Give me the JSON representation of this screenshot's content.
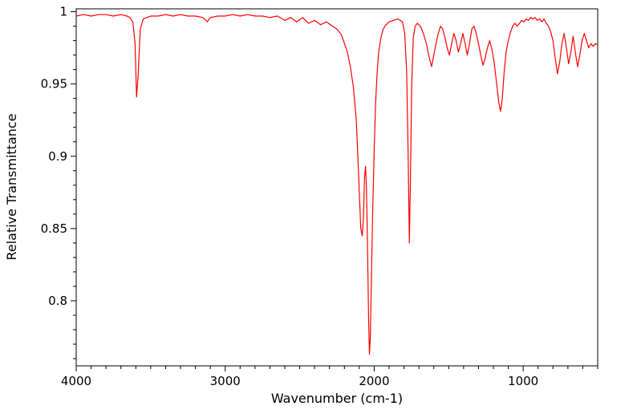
{
  "chart_data": {
    "type": "line",
    "title": "",
    "xlabel": "Wavenumber (cm-1)",
    "ylabel": "Relative Transmittance",
    "xlim": [
      4000,
      500
    ],
    "ylim": [
      0.755,
      1.002
    ],
    "x_axis_reversed": true,
    "grid": false,
    "legend": "none",
    "x_ticks": [
      4000,
      3000,
      2000,
      1000
    ],
    "x_tick_labels": [
      "4000",
      "3000",
      "2000",
      "1000"
    ],
    "x_minor_step": 100,
    "y_ticks": [
      1,
      0.95,
      0.9,
      0.85,
      0.8
    ],
    "y_tick_labels": [
      "1",
      "0.95",
      "0.9",
      "0.85",
      "0.8"
    ],
    "y_minor_step": 0.01,
    "line_color": "#ff0000",
    "frame_color": "#000000",
    "series": [
      {
        "name": "IR spectrum",
        "points": [
          [
            4000,
            0.997
          ],
          [
            3950,
            0.998
          ],
          [
            3900,
            0.997
          ],
          [
            3850,
            0.998
          ],
          [
            3800,
            0.998
          ],
          [
            3750,
            0.997
          ],
          [
            3700,
            0.998
          ],
          [
            3660,
            0.997
          ],
          [
            3640,
            0.996
          ],
          [
            3620,
            0.993
          ],
          [
            3605,
            0.978
          ],
          [
            3595,
            0.941
          ],
          [
            3585,
            0.955
          ],
          [
            3570,
            0.988
          ],
          [
            3550,
            0.995
          ],
          [
            3500,
            0.997
          ],
          [
            3450,
            0.997
          ],
          [
            3400,
            0.998
          ],
          [
            3350,
            0.997
          ],
          [
            3300,
            0.998
          ],
          [
            3250,
            0.997
          ],
          [
            3200,
            0.997
          ],
          [
            3150,
            0.996
          ],
          [
            3120,
            0.993
          ],
          [
            3100,
            0.996
          ],
          [
            3050,
            0.997
          ],
          [
            3000,
            0.997
          ],
          [
            2950,
            0.998
          ],
          [
            2900,
            0.997
          ],
          [
            2850,
            0.998
          ],
          [
            2800,
            0.997
          ],
          [
            2750,
            0.997
          ],
          [
            2700,
            0.996
          ],
          [
            2650,
            0.997
          ],
          [
            2600,
            0.994
          ],
          [
            2560,
            0.996
          ],
          [
            2520,
            0.993
          ],
          [
            2480,
            0.996
          ],
          [
            2440,
            0.992
          ],
          [
            2400,
            0.994
          ],
          [
            2360,
            0.991
          ],
          [
            2320,
            0.993
          ],
          [
            2280,
            0.99
          ],
          [
            2250,
            0.988
          ],
          [
            2220,
            0.984
          ],
          [
            2200,
            0.978
          ],
          [
            2180,
            0.972
          ],
          [
            2160,
            0.962
          ],
          [
            2140,
            0.948
          ],
          [
            2120,
            0.925
          ],
          [
            2105,
            0.888
          ],
          [
            2090,
            0.85
          ],
          [
            2080,
            0.845
          ],
          [
            2072,
            0.858
          ],
          [
            2065,
            0.885
          ],
          [
            2058,
            0.893
          ],
          [
            2052,
            0.878
          ],
          [
            2045,
            0.84
          ],
          [
            2038,
            0.79
          ],
          [
            2032,
            0.763
          ],
          [
            2026,
            0.775
          ],
          [
            2018,
            0.82
          ],
          [
            2010,
            0.862
          ],
          [
            2000,
            0.905
          ],
          [
            1990,
            0.938
          ],
          [
            1980,
            0.958
          ],
          [
            1970,
            0.972
          ],
          [
            1955,
            0.982
          ],
          [
            1940,
            0.988
          ],
          [
            1920,
            0.991
          ],
          [
            1900,
            0.993
          ],
          [
            1870,
            0.994
          ],
          [
            1840,
            0.995
          ],
          [
            1810,
            0.993
          ],
          [
            1795,
            0.985
          ],
          [
            1782,
            0.958
          ],
          [
            1772,
            0.9
          ],
          [
            1764,
            0.84
          ],
          [
            1756,
            0.89
          ],
          [
            1748,
            0.95
          ],
          [
            1738,
            0.982
          ],
          [
            1725,
            0.99
          ],
          [
            1710,
            0.992
          ],
          [
            1690,
            0.99
          ],
          [
            1670,
            0.985
          ],
          [
            1650,
            0.978
          ],
          [
            1630,
            0.968
          ],
          [
            1615,
            0.962
          ],
          [
            1600,
            0.97
          ],
          [
            1585,
            0.978
          ],
          [
            1570,
            0.985
          ],
          [
            1555,
            0.99
          ],
          [
            1540,
            0.988
          ],
          [
            1525,
            0.982
          ],
          [
            1510,
            0.975
          ],
          [
            1495,
            0.97
          ],
          [
            1480,
            0.978
          ],
          [
            1465,
            0.985
          ],
          [
            1450,
            0.98
          ],
          [
            1435,
            0.972
          ],
          [
            1420,
            0.978
          ],
          [
            1405,
            0.985
          ],
          [
            1390,
            0.978
          ],
          [
            1375,
            0.97
          ],
          [
            1360,
            0.978
          ],
          [
            1345,
            0.988
          ],
          [
            1330,
            0.99
          ],
          [
            1315,
            0.985
          ],
          [
            1300,
            0.978
          ],
          [
            1285,
            0.97
          ],
          [
            1270,
            0.963
          ],
          [
            1255,
            0.968
          ],
          [
            1240,
            0.975
          ],
          [
            1225,
            0.98
          ],
          [
            1210,
            0.974
          ],
          [
            1195,
            0.965
          ],
          [
            1180,
            0.952
          ],
          [
            1165,
            0.938
          ],
          [
            1152,
            0.931
          ],
          [
            1140,
            0.94
          ],
          [
            1128,
            0.958
          ],
          [
            1115,
            0.972
          ],
          [
            1100,
            0.98
          ],
          [
            1085,
            0.986
          ],
          [
            1070,
            0.99
          ],
          [
            1055,
            0.992
          ],
          [
            1040,
            0.99
          ],
          [
            1025,
            0.992
          ],
          [
            1010,
            0.994
          ],
          [
            995,
            0.993
          ],
          [
            980,
            0.995
          ],
          [
            965,
            0.994
          ],
          [
            950,
            0.996
          ],
          [
            935,
            0.995
          ],
          [
            920,
            0.996
          ],
          [
            905,
            0.994
          ],
          [
            890,
            0.995
          ],
          [
            875,
            0.993
          ],
          [
            860,
            0.995
          ],
          [
            845,
            0.992
          ],
          [
            830,
            0.99
          ],
          [
            815,
            0.986
          ],
          [
            800,
            0.98
          ],
          [
            785,
            0.968
          ],
          [
            770,
            0.957
          ],
          [
            755,
            0.965
          ],
          [
            740,
            0.978
          ],
          [
            725,
            0.985
          ],
          [
            710,
            0.975
          ],
          [
            695,
            0.964
          ],
          [
            680,
            0.972
          ],
          [
            665,
            0.983
          ],
          [
            650,
            0.972
          ],
          [
            635,
            0.962
          ],
          [
            620,
            0.97
          ],
          [
            605,
            0.98
          ],
          [
            590,
            0.985
          ],
          [
            575,
            0.98
          ],
          [
            560,
            0.975
          ],
          [
            545,
            0.978
          ],
          [
            530,
            0.976
          ],
          [
            515,
            0.978
          ],
          [
            500,
            0.977
          ]
        ]
      }
    ]
  }
}
